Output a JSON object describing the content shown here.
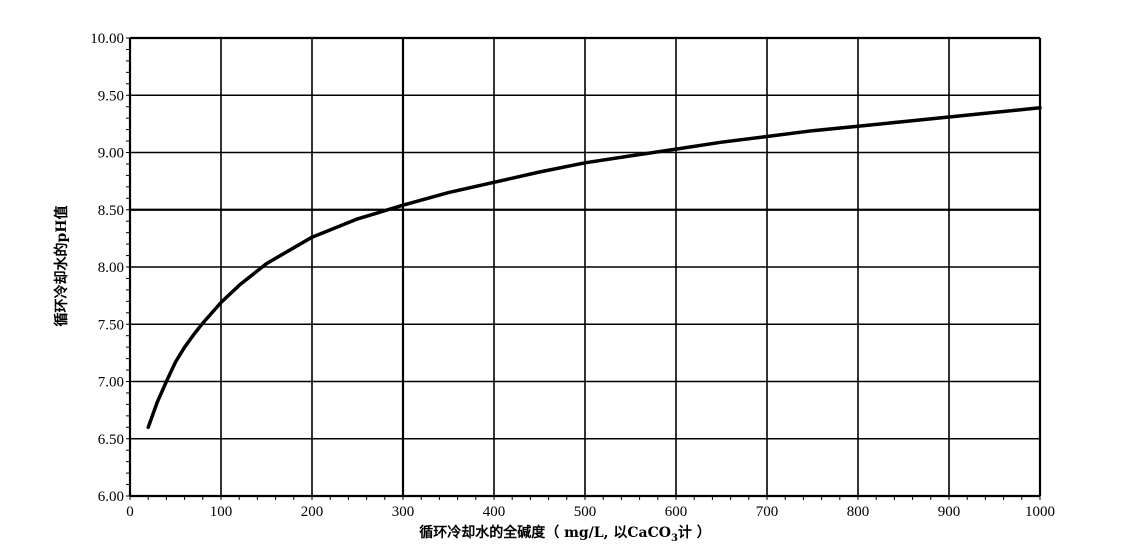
{
  "chart_data": {
    "type": "line",
    "xlabel": "循环冷却水的全碱度（ mg/L, 以CaCO",
    "xlabel_sub": "3",
    "xlabel_tail": "计 ）",
    "ylabel": "循环冷却水的pH值",
    "xlim": [
      0,
      1000
    ],
    "ylim": [
      6.0,
      10.0
    ],
    "x_ticks": [
      0,
      100,
      200,
      300,
      400,
      500,
      600,
      700,
      800,
      900,
      1000
    ],
    "x_tick_labels": [
      "0",
      "100",
      "200",
      "300",
      "400",
      "500",
      "600",
      "700",
      "800",
      "900",
      "1000"
    ],
    "y_ticks": [
      6.0,
      6.5,
      7.0,
      7.5,
      8.0,
      8.5,
      9.0,
      9.5,
      10.0
    ],
    "y_tick_labels": [
      "6.00",
      "6.50",
      "7.00",
      "7.50",
      "8.00",
      "8.50",
      "9.00",
      "9.50",
      "10.00"
    ],
    "grid": true,
    "series": [
      {
        "x": [
          20,
          30,
          40,
          50,
          60,
          70,
          80,
          100,
          120,
          150,
          200,
          250,
          300,
          350,
          400,
          450,
          500,
          550,
          600,
          650,
          700,
          750,
          800,
          850,
          900,
          950,
          1000
        ],
        "values": [
          6.6,
          6.82,
          7.0,
          7.17,
          7.3,
          7.41,
          7.51,
          7.69,
          7.84,
          8.03,
          8.26,
          8.42,
          8.54,
          8.65,
          8.74,
          8.83,
          8.91,
          8.97,
          9.03,
          9.09,
          9.14,
          9.19,
          9.23,
          9.27,
          9.31,
          9.35,
          9.39
        ]
      }
    ]
  }
}
